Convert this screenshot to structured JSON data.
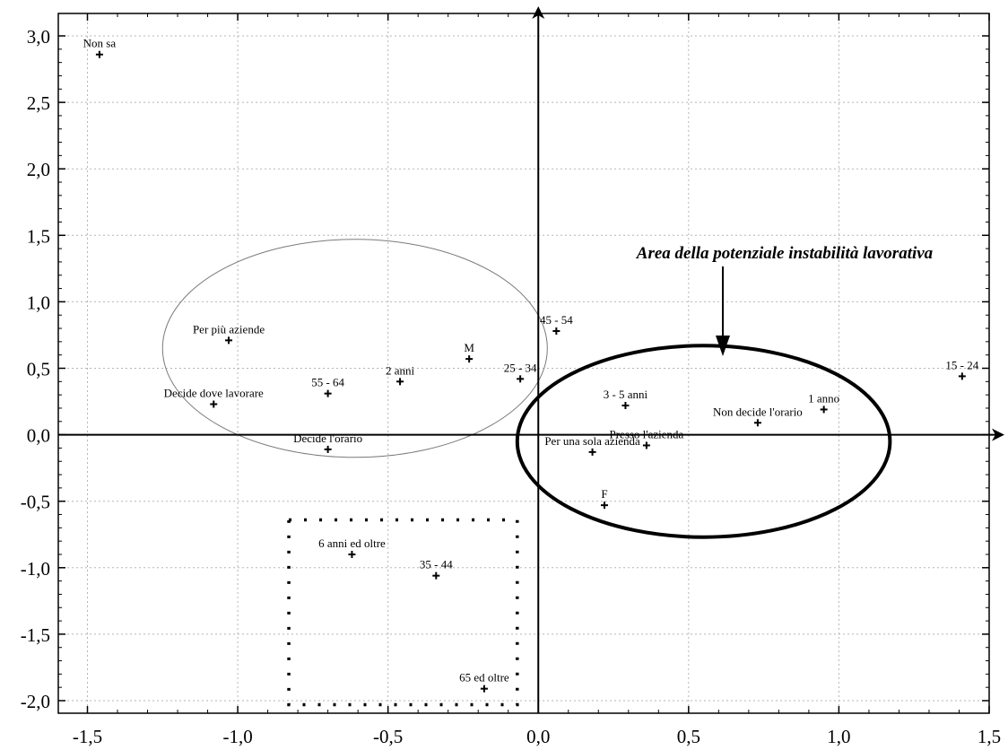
{
  "chart_data": {
    "type": "scatter",
    "title": "",
    "xlabel": "",
    "ylabel": "",
    "xlim": [
      -1.6,
      1.5
    ],
    "ylim": [
      -2.07,
      3.2
    ],
    "grid": true,
    "x_ticks": [
      -1.5,
      -1.0,
      -0.5,
      0.0,
      0.5,
      1.0,
      1.5
    ],
    "x_tick_labels": [
      "-1,5",
      "-1,0",
      "-0,5",
      "0,0",
      "0,5",
      "1,0",
      "1,5"
    ],
    "y_ticks": [
      3.0,
      2.5,
      2.0,
      1.5,
      1.0,
      0.5,
      0.0,
      -0.5,
      -1.0,
      -1.5,
      -2.0
    ],
    "y_tick_labels": [
      "3,0",
      "2,5",
      "2,0",
      "1,5",
      "1,0",
      "0,5",
      "0,0",
      "-0,5",
      "-1,0",
      "-1,5",
      "-2,0"
    ],
    "points": [
      {
        "label": "Non sa",
        "x": -1.46,
        "y": 2.86
      },
      {
        "label": "Per più aziende",
        "x": -1.03,
        "y": 0.71
      },
      {
        "label": "Decide dove lavorare",
        "x": -1.08,
        "y": 0.23
      },
      {
        "label": "55 - 64",
        "x": -0.7,
        "y": 0.31
      },
      {
        "label": "2 anni",
        "x": -0.46,
        "y": 0.4
      },
      {
        "label": "M",
        "x": -0.23,
        "y": 0.57
      },
      {
        "label": "45 - 54",
        "x": 0.06,
        "y": 0.78
      },
      {
        "label": "25 - 34",
        "x": -0.06,
        "y": 0.42
      },
      {
        "label": "Decide l'orario",
        "x": -0.7,
        "y": -0.11
      },
      {
        "label": "3 - 5 anni",
        "x": 0.29,
        "y": 0.22
      },
      {
        "label": "Non decide l'orario",
        "x": 0.73,
        "y": 0.09
      },
      {
        "label": "1 anno",
        "x": 0.95,
        "y": 0.19
      },
      {
        "label": "15 - 24",
        "x": 1.41,
        "y": 0.44
      },
      {
        "label": "Per una sola azienda",
        "x": 0.18,
        "y": -0.13
      },
      {
        "label": "Presso l'azienda",
        "x": 0.36,
        "y": -0.08
      },
      {
        "label": "F",
        "x": 0.22,
        "y": -0.53
      },
      {
        "label": "6 anni ed oltre",
        "x": -0.62,
        "y": -0.9
      },
      {
        "label": "35 - 44",
        "x": -0.34,
        "y": -1.06
      },
      {
        "label": "65 ed oltre",
        "x": -0.18,
        "y": -1.91
      }
    ],
    "annotations": [
      {
        "text": "Area della potenziale instabilità lavorativa"
      }
    ],
    "regions": [
      {
        "name": "thin-ellipse",
        "cx": -0.61,
        "cy": 0.65,
        "rx": 0.64,
        "ry": 0.82
      },
      {
        "name": "thick-ellipse",
        "cx": 0.55,
        "cy": -0.05,
        "rx": 0.62,
        "ry": 0.72
      },
      {
        "name": "dotted-rectangle",
        "x_min": -0.83,
        "x_max": -0.07,
        "y_min": -2.03,
        "y_max": -0.64
      }
    ]
  }
}
